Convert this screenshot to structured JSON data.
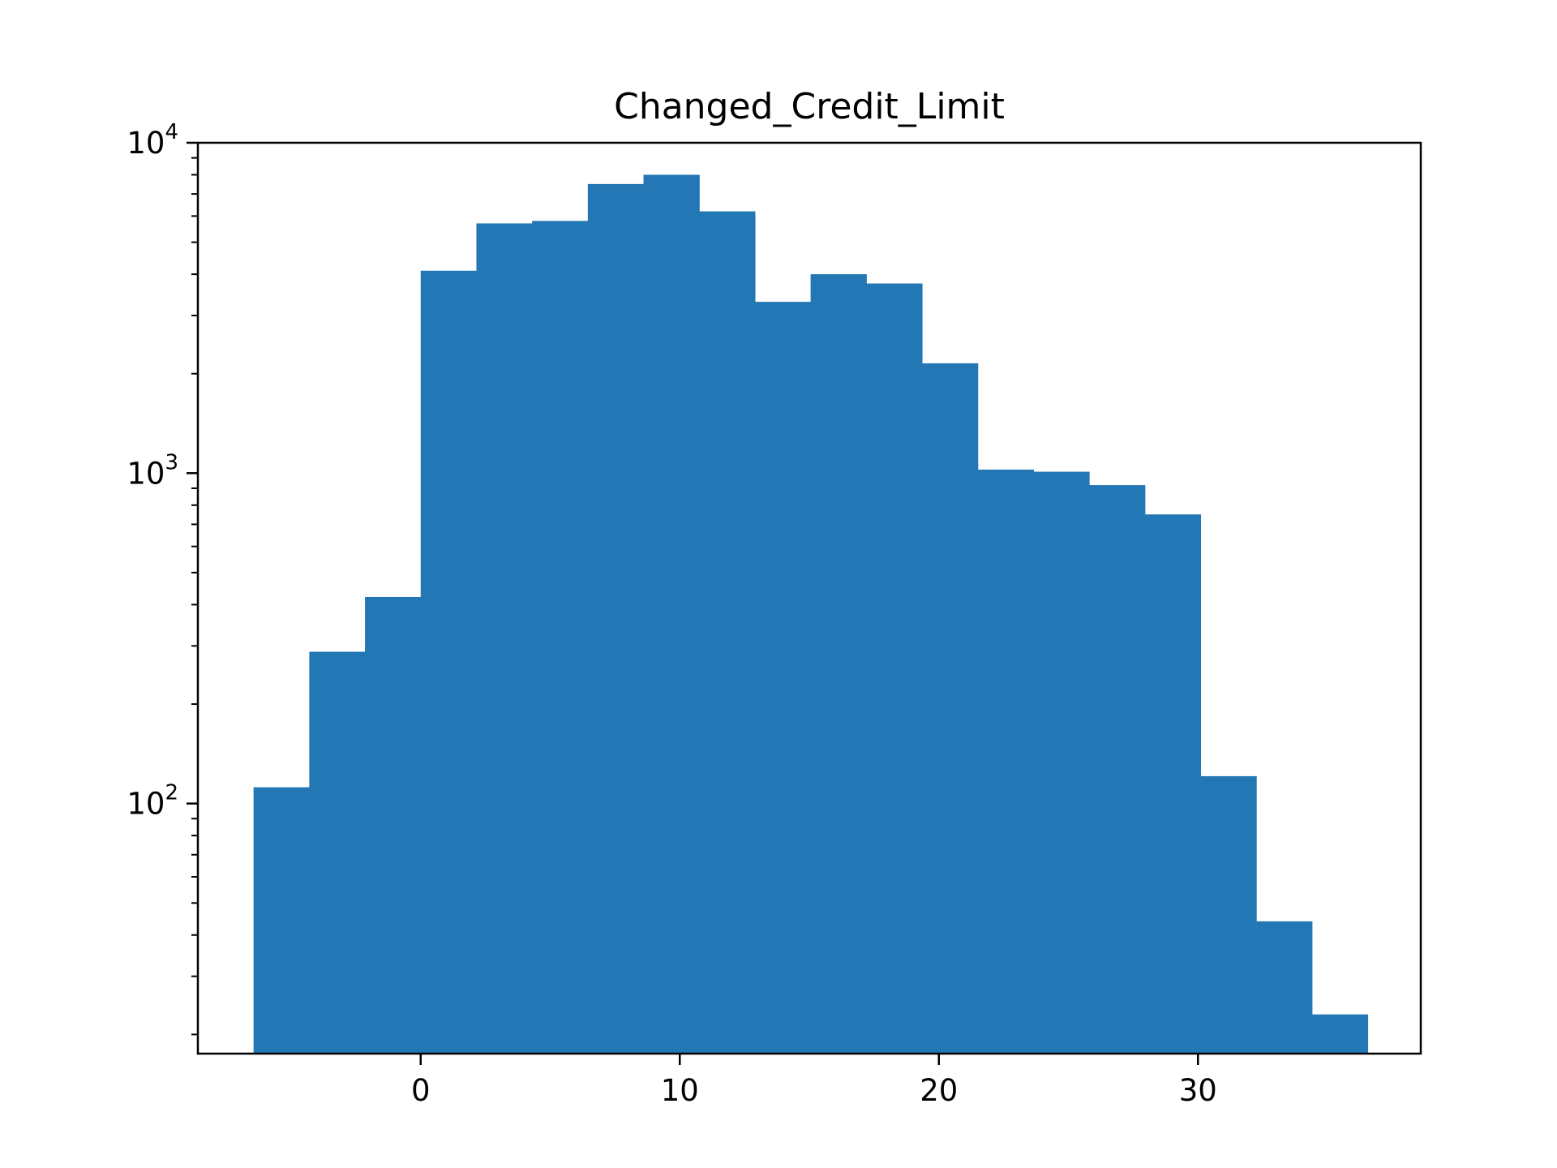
{
  "chart_data": {
    "type": "bar",
    "title": "Changed_Credit_Limit",
    "xlabel": "",
    "ylabel": "",
    "y_scale": "log",
    "grid": false,
    "legend": "none",
    "colors": {
      "bar": "#2277b4",
      "axes": "#000000",
      "background": "#ffffff"
    },
    "x_range": [
      -8.6,
      38.6
    ],
    "ylim": [
      17.5,
      10000
    ],
    "x_ticks": [
      0,
      10,
      20,
      30
    ],
    "x_tick_labels": [
      "0",
      "10",
      "20",
      "30"
    ],
    "y_major_ticks": [
      {
        "value": 100,
        "base": "10",
        "exp": "2"
      },
      {
        "value": 1000,
        "base": "10",
        "exp": "3"
      },
      {
        "value": 10000,
        "base": "10",
        "exp": "4"
      }
    ],
    "bins": [
      {
        "x0": -6.45,
        "x1": -4.3,
        "count": 112
      },
      {
        "x0": -4.3,
        "x1": -2.15,
        "count": 288
      },
      {
        "x0": -2.15,
        "x1": 0.0,
        "count": 422
      },
      {
        "x0": 0.0,
        "x1": 2.15,
        "count": 4100
      },
      {
        "x0": 2.15,
        "x1": 4.3,
        "count": 5700
      },
      {
        "x0": 4.3,
        "x1": 6.45,
        "count": 5800
      },
      {
        "x0": 6.45,
        "x1": 8.6,
        "count": 7500
      },
      {
        "x0": 8.6,
        "x1": 10.75,
        "count": 8000
      },
      {
        "x0": 10.75,
        "x1": 12.9,
        "count": 6200
      },
      {
        "x0": 12.9,
        "x1": 15.05,
        "count": 3300
      },
      {
        "x0": 15.05,
        "x1": 17.2,
        "count": 4000
      },
      {
        "x0": 17.2,
        "x1": 19.35,
        "count": 3750
      },
      {
        "x0": 19.35,
        "x1": 21.5,
        "count": 2150
      },
      {
        "x0": 21.5,
        "x1": 23.65,
        "count": 1025
      },
      {
        "x0": 23.65,
        "x1": 25.8,
        "count": 1010
      },
      {
        "x0": 25.8,
        "x1": 27.95,
        "count": 920
      },
      {
        "x0": 27.95,
        "x1": 30.1,
        "count": 750
      },
      {
        "x0": 30.1,
        "x1": 32.25,
        "count": 121
      },
      {
        "x0": 32.25,
        "x1": 34.4,
        "count": 44
      },
      {
        "x0": 34.4,
        "x1": 36.55,
        "count": 23
      }
    ]
  }
}
